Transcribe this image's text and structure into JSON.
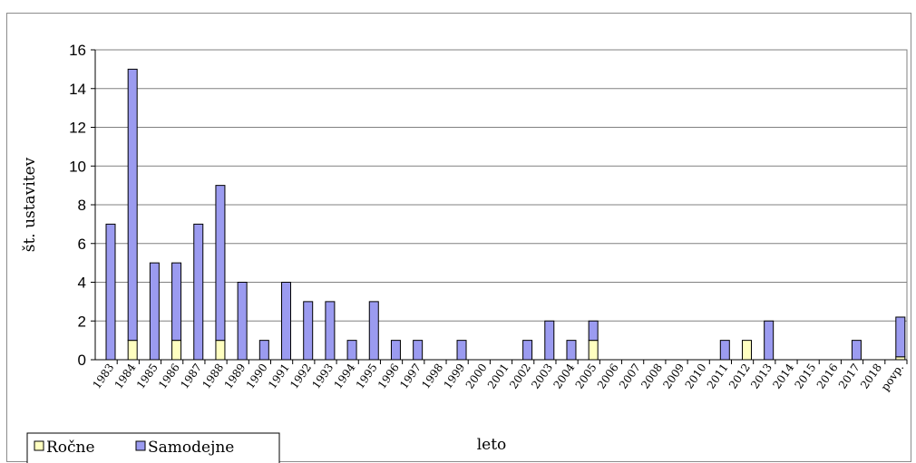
{
  "chart_data": {
    "type": "bar",
    "stacked": true,
    "xlabel": "leto",
    "ylabel": "št. ustavitev",
    "ylim": [
      0,
      16
    ],
    "yticks": [
      0,
      2,
      4,
      6,
      8,
      10,
      12,
      14,
      16
    ],
    "grid": true,
    "legend_position": "bottom-left",
    "categories": [
      "1983",
      "1984",
      "1985",
      "1986",
      "1987",
      "1988",
      "1989",
      "1990",
      "1991",
      "1992",
      "1993",
      "1994",
      "1995",
      "1996",
      "1997",
      "1998",
      "1999",
      "2000",
      "2001",
      "2002",
      "2003",
      "2004",
      "2005",
      "2006",
      "2007",
      "2008",
      "2009",
      "2010",
      "2011",
      "2012",
      "2013",
      "2014",
      "2015",
      "2016",
      "2017",
      "2018",
      "povp."
    ],
    "series": [
      {
        "name": "Ročne",
        "color": "#ffffc0",
        "values": [
          0,
          1,
          0,
          1,
          0,
          1,
          0,
          0,
          0,
          0,
          0,
          0,
          0,
          0,
          0,
          0,
          0,
          0,
          0,
          0,
          0,
          0,
          1,
          0,
          0,
          0,
          0,
          0,
          0,
          1,
          0,
          0,
          0,
          0,
          0,
          0,
          0.15
        ]
      },
      {
        "name": "Samodejne",
        "color": "#9b9bf0",
        "values": [
          7,
          14,
          5,
          4,
          7,
          8,
          4,
          1,
          4,
          3,
          3,
          1,
          3,
          1,
          1,
          0,
          1,
          0,
          0,
          1,
          2,
          1,
          1,
          0,
          0,
          0,
          0,
          0,
          1,
          0,
          2,
          0,
          0,
          0,
          1,
          0,
          2.05
        ]
      }
    ]
  }
}
